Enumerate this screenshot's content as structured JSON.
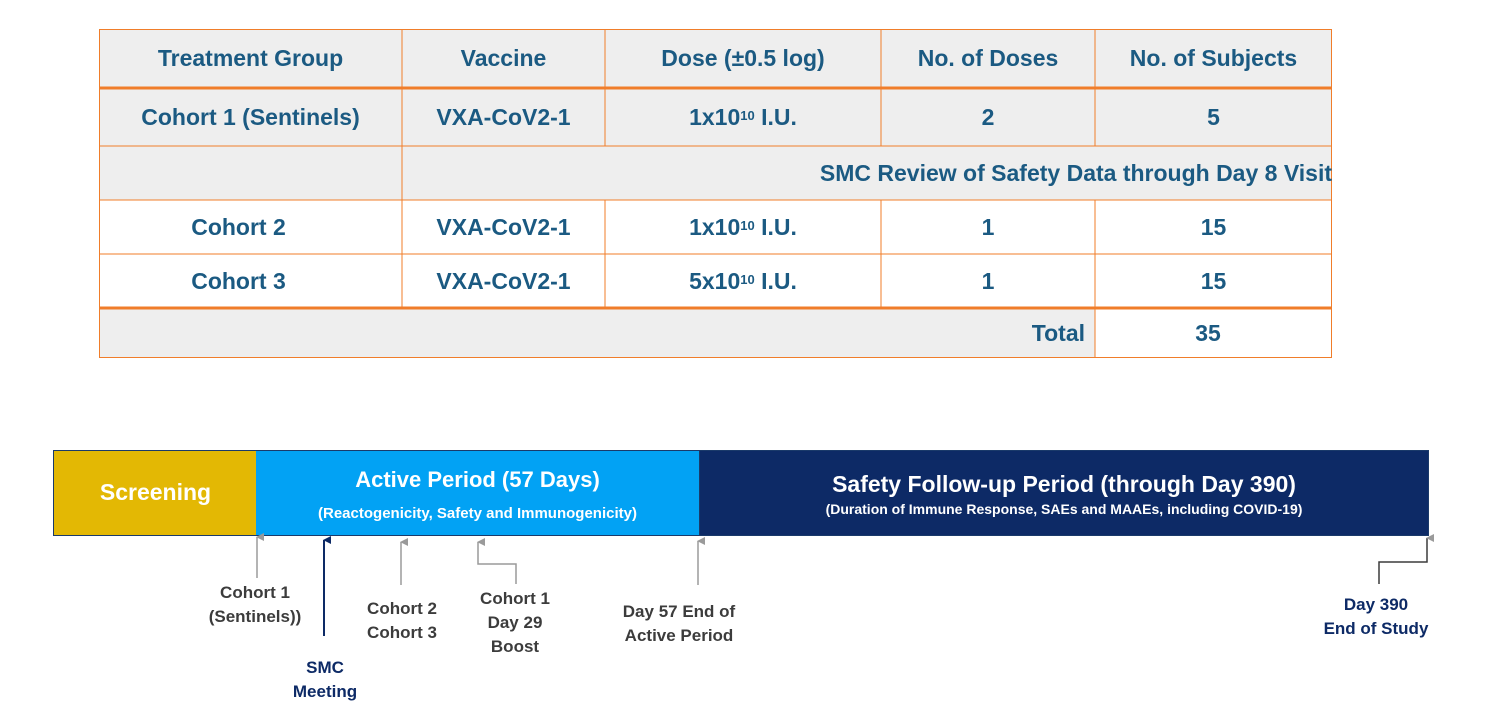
{
  "table": {
    "headers": [
      "Treatment Group",
      "Vaccine",
      "Dose (±0.5 log)",
      "No. of Doses",
      "No. of Subjects"
    ],
    "rows": [
      {
        "group": "Cohort 1 (Sentinels)",
        "vaccine": "VXA-CoV2-1",
        "dose_base": "1x10",
        "dose_exp": "10",
        "dose_unit": " I.U.",
        "doses": "2",
        "subjects": "5"
      },
      {
        "review": "SMC Review of Safety Data through Day 8 Visit"
      },
      {
        "group": "Cohort 2",
        "vaccine": "VXA-CoV2-1",
        "dose_base": "1x10",
        "dose_exp": "10",
        "dose_unit": " I.U.",
        "doses": "1",
        "subjects": "15"
      },
      {
        "group": "Cohort 3",
        "vaccine": "VXA-CoV2-1",
        "dose_base": "5x10",
        "dose_exp": "10",
        "dose_unit": " I.U.",
        "doses": "1",
        "subjects": "15"
      }
    ],
    "total_label": "Total",
    "total_value": "35",
    "colors": {
      "border": "#f07d2a",
      "shade": "#eeeeee",
      "text": "#1b5a82"
    }
  },
  "timeline": {
    "phases": [
      {
        "name": "Screening",
        "color": "#e3b804"
      },
      {
        "name": "Active Period (57 Days)",
        "sub": "(Reactogenicity, Safety and Immunogenicity)",
        "color": "#02a2f4"
      },
      {
        "name": "Safety Follow-up Period (through Day 390)",
        "sub": "(Duration of Immune Response, SAEs and MAAEs, including COVID-19)",
        "color": "#0d2a66"
      }
    ],
    "milestones": {
      "cohort1": [
        "Cohort 1",
        "(Sentinels))"
      ],
      "smc": [
        "SMC",
        "Meeting"
      ],
      "cohort23": [
        "Cohort 2",
        "Cohort 3"
      ],
      "boost": [
        "Cohort 1",
        "Day 29",
        "Boost"
      ],
      "day57": [
        "Day 57 End of",
        "Active Period"
      ],
      "day390": [
        "Day 390",
        "End of Study"
      ]
    }
  }
}
